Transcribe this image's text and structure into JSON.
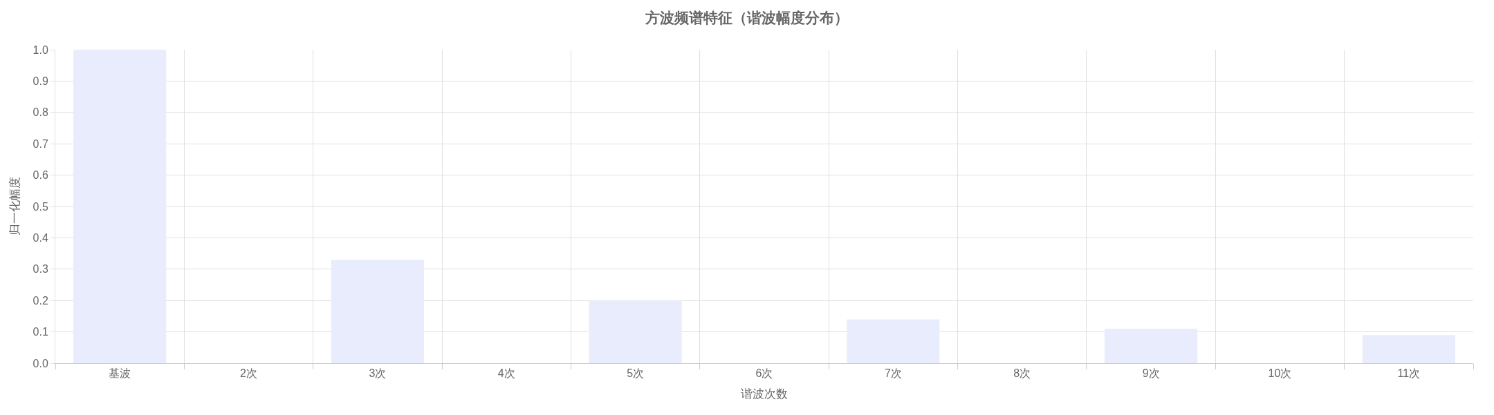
{
  "chart_data": {
    "type": "bar",
    "title": "方波频谱特征（谐波幅度分布）",
    "xlabel": "谐波次数",
    "ylabel": "归一化幅度",
    "categories": [
      "基波",
      "2次",
      "3次",
      "4次",
      "5次",
      "6次",
      "7次",
      "8次",
      "9次",
      "10次",
      "11次"
    ],
    "values": [
      1.0,
      0,
      0.33,
      0,
      0.2,
      0,
      0.14,
      0,
      0.11,
      0,
      0.09
    ],
    "color": "#e8ecfc",
    "ylim": [
      0,
      1.0
    ],
    "yticks": [
      {
        "value": 0,
        "label": "0.0"
      },
      0.1,
      0.2,
      0.3,
      0.4,
      0.5,
      0.6,
      0.7,
      0.8,
      0.9,
      {
        "value": 1,
        "label": "1.0"
      }
    ],
    "grid": true
  }
}
